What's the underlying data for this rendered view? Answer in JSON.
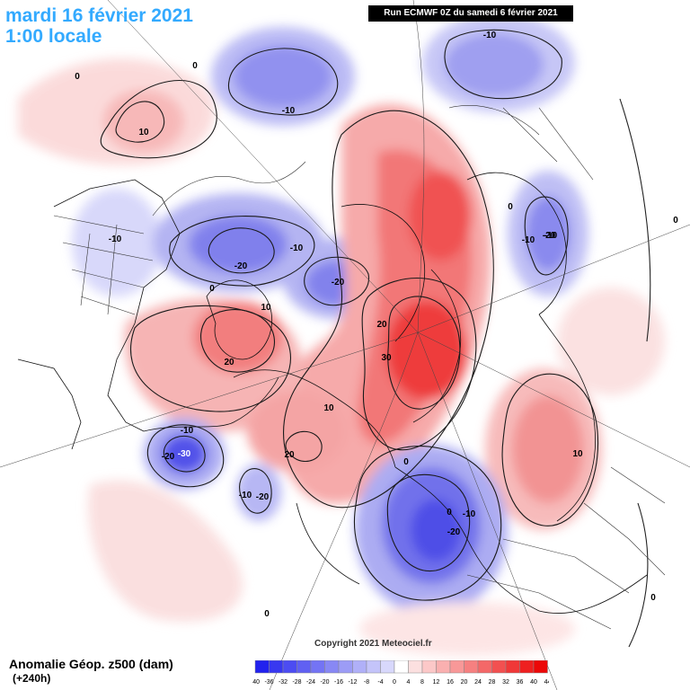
{
  "header": {
    "date_line": "mardi 16 février 2021",
    "time_line": "1:00 locale",
    "run_info": "Run ECMWF 0Z du samedi 6 février 2021"
  },
  "copyright": "Copyright 2021 Meteociel.fr",
  "footer": {
    "title": "Anomalie Géop. z500 (dam)",
    "lead": "(+240h)"
  },
  "colorbar": {
    "ticks": [
      "-40",
      "-36",
      "-32",
      "-28",
      "-24",
      "-20",
      "-16",
      "-12",
      "-8",
      "-4",
      "0",
      "4",
      "8",
      "12",
      "16",
      "20",
      "24",
      "28",
      "32",
      "36",
      "40",
      "44"
    ],
    "colors": [
      "#2222ee",
      "#3838f0",
      "#4c4cf2",
      "#6060f2",
      "#7474f4",
      "#8888f4",
      "#9c9cf6",
      "#b0b0f8",
      "#c4c4fa",
      "#d8d8fc",
      "#ffffff",
      "#fce0e0",
      "#fcc8c8",
      "#fab0b0",
      "#f89898",
      "#f68080",
      "#f46868",
      "#f25050",
      "#f03838",
      "#ee2020",
      "#ec0808"
    ]
  },
  "contour_labels": [
    "0",
    "0",
    "-10",
    "10",
    "-10",
    "0",
    "-10",
    "-10",
    "-20",
    "-10",
    "-20",
    "-10",
    "-20",
    "0",
    "10",
    "20",
    "30",
    "20",
    "10",
    "20",
    "0",
    "-10",
    "-20",
    "-30",
    "-10",
    "-20",
    "0",
    "-10",
    "-20",
    "10",
    "0",
    "0",
    "0"
  ]
}
